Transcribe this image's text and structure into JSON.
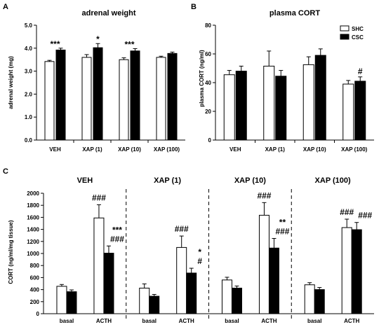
{
  "figure": {
    "panels": [
      {
        "letter": "A",
        "title": "adrenal weight",
        "ylabel": "adrenal weight (mg)"
      },
      {
        "letter": "B",
        "title": "plasma CORT",
        "ylabel": "plasma CORT (ng/ml)"
      },
      {
        "letter": "C",
        "ylabel": "CORT (ng/ml/mg tissue)"
      }
    ],
    "legend": [
      {
        "name": "SHC",
        "color": "#ffffff"
      },
      {
        "name": "CSC",
        "color": "#000000"
      }
    ]
  },
  "chart_data": [
    {
      "type": "bar",
      "title": "adrenal weight",
      "ylabel": "adrenal weight (mg)",
      "ylim": [
        0,
        5
      ],
      "yticks": [
        "0.0",
        "1.0",
        "2.0",
        "3.0",
        "4.0",
        "5.0"
      ],
      "categories": [
        "VEH",
        "XAP (1)",
        "XAP (10)",
        "XAP (100)"
      ],
      "series": [
        {
          "name": "SHC",
          "color": "#ffffff",
          "values": [
            3.42,
            3.6,
            3.5,
            3.6
          ],
          "errors": [
            0.05,
            0.12,
            0.08,
            0.05
          ]
        },
        {
          "name": "CSC",
          "color": "#000000",
          "values": [
            3.92,
            4.02,
            3.88,
            3.77
          ],
          "errors": [
            0.08,
            0.18,
            0.1,
            0.06
          ]
        }
      ],
      "annotations": [
        {
          "category": 0,
          "text": "***"
        },
        {
          "category": 1,
          "text": "*"
        },
        {
          "category": 2,
          "text": "***"
        }
      ]
    },
    {
      "type": "bar",
      "title": "plasma CORT",
      "ylabel": "plasma CORT (ng/ml)",
      "ylim": [
        0,
        80
      ],
      "yticks": [
        "0",
        "20",
        "40",
        "60",
        "80"
      ],
      "categories": [
        "VEH",
        "XAP (1)",
        "XAP (10)",
        "XAP (100)"
      ],
      "series": [
        {
          "name": "SHC",
          "color": "#ffffff",
          "values": [
            45.5,
            51.5,
            52.5,
            39
          ],
          "errors": [
            3,
            10.5,
            5.5,
            2.5
          ]
        },
        {
          "name": "CSC",
          "color": "#000000",
          "values": [
            48,
            44.5,
            59,
            41
          ],
          "errors": [
            3.5,
            4,
            4.5,
            3
          ]
        }
      ],
      "annotations": [
        {
          "category": 3,
          "text": "#"
        }
      ]
    },
    {
      "type": "bar",
      "ylabel": "CORT (ng/ml/mg tissue)",
      "ylim": [
        0,
        2000
      ],
      "yticks": [
        "0",
        "200",
        "400",
        "600",
        "800",
        "1000",
        "1200",
        "1400",
        "1600",
        "1800",
        "2000"
      ],
      "groups": [
        "VEH",
        "XAP (1)",
        "XAP (10)",
        "XAP (100)"
      ],
      "conditions": [
        "basal",
        "ACTH"
      ],
      "series": [
        {
          "name": "SHC",
          "color": "#ffffff",
          "values": [
            [
              455,
              1590
            ],
            [
              425,
              1100
            ],
            [
              560,
              1635
            ],
            [
              480,
              1430
            ]
          ],
          "errors": [
            [
              30,
              220
            ],
            [
              70,
              190
            ],
            [
              45,
              210
            ],
            [
              35,
              140
            ]
          ]
        },
        {
          "name": "CSC",
          "color": "#000000",
          "values": [
            [
              365,
              1005
            ],
            [
              290,
              675
            ],
            [
              425,
              1090
            ],
            [
              400,
              1395
            ]
          ],
          "errors": [
            [
              30,
              120
            ],
            [
              30,
              80
            ],
            [
              35,
              160
            ],
            [
              35,
              120
            ]
          ]
        }
      ],
      "annotations": [
        {
          "group": 0,
          "condition": 1,
          "series": "SHC",
          "lines": [
            "###"
          ]
        },
        {
          "group": 0,
          "condition": 1,
          "series": "CSC",
          "lines": [
            "***",
            "###"
          ]
        },
        {
          "group": 1,
          "condition": 1,
          "series": "SHC",
          "lines": [
            "###"
          ]
        },
        {
          "group": 1,
          "condition": 1,
          "series": "CSC",
          "lines": [
            "*",
            "#"
          ]
        },
        {
          "group": 2,
          "condition": 1,
          "series": "SHC",
          "lines": [
            "###"
          ]
        },
        {
          "group": 2,
          "condition": 1,
          "series": "CSC",
          "lines": [
            "**",
            "###"
          ]
        },
        {
          "group": 3,
          "condition": 1,
          "series": "SHC",
          "lines": [
            "###"
          ]
        },
        {
          "group": 3,
          "condition": 1,
          "series": "CSC",
          "lines": [
            "###"
          ]
        }
      ]
    }
  ]
}
